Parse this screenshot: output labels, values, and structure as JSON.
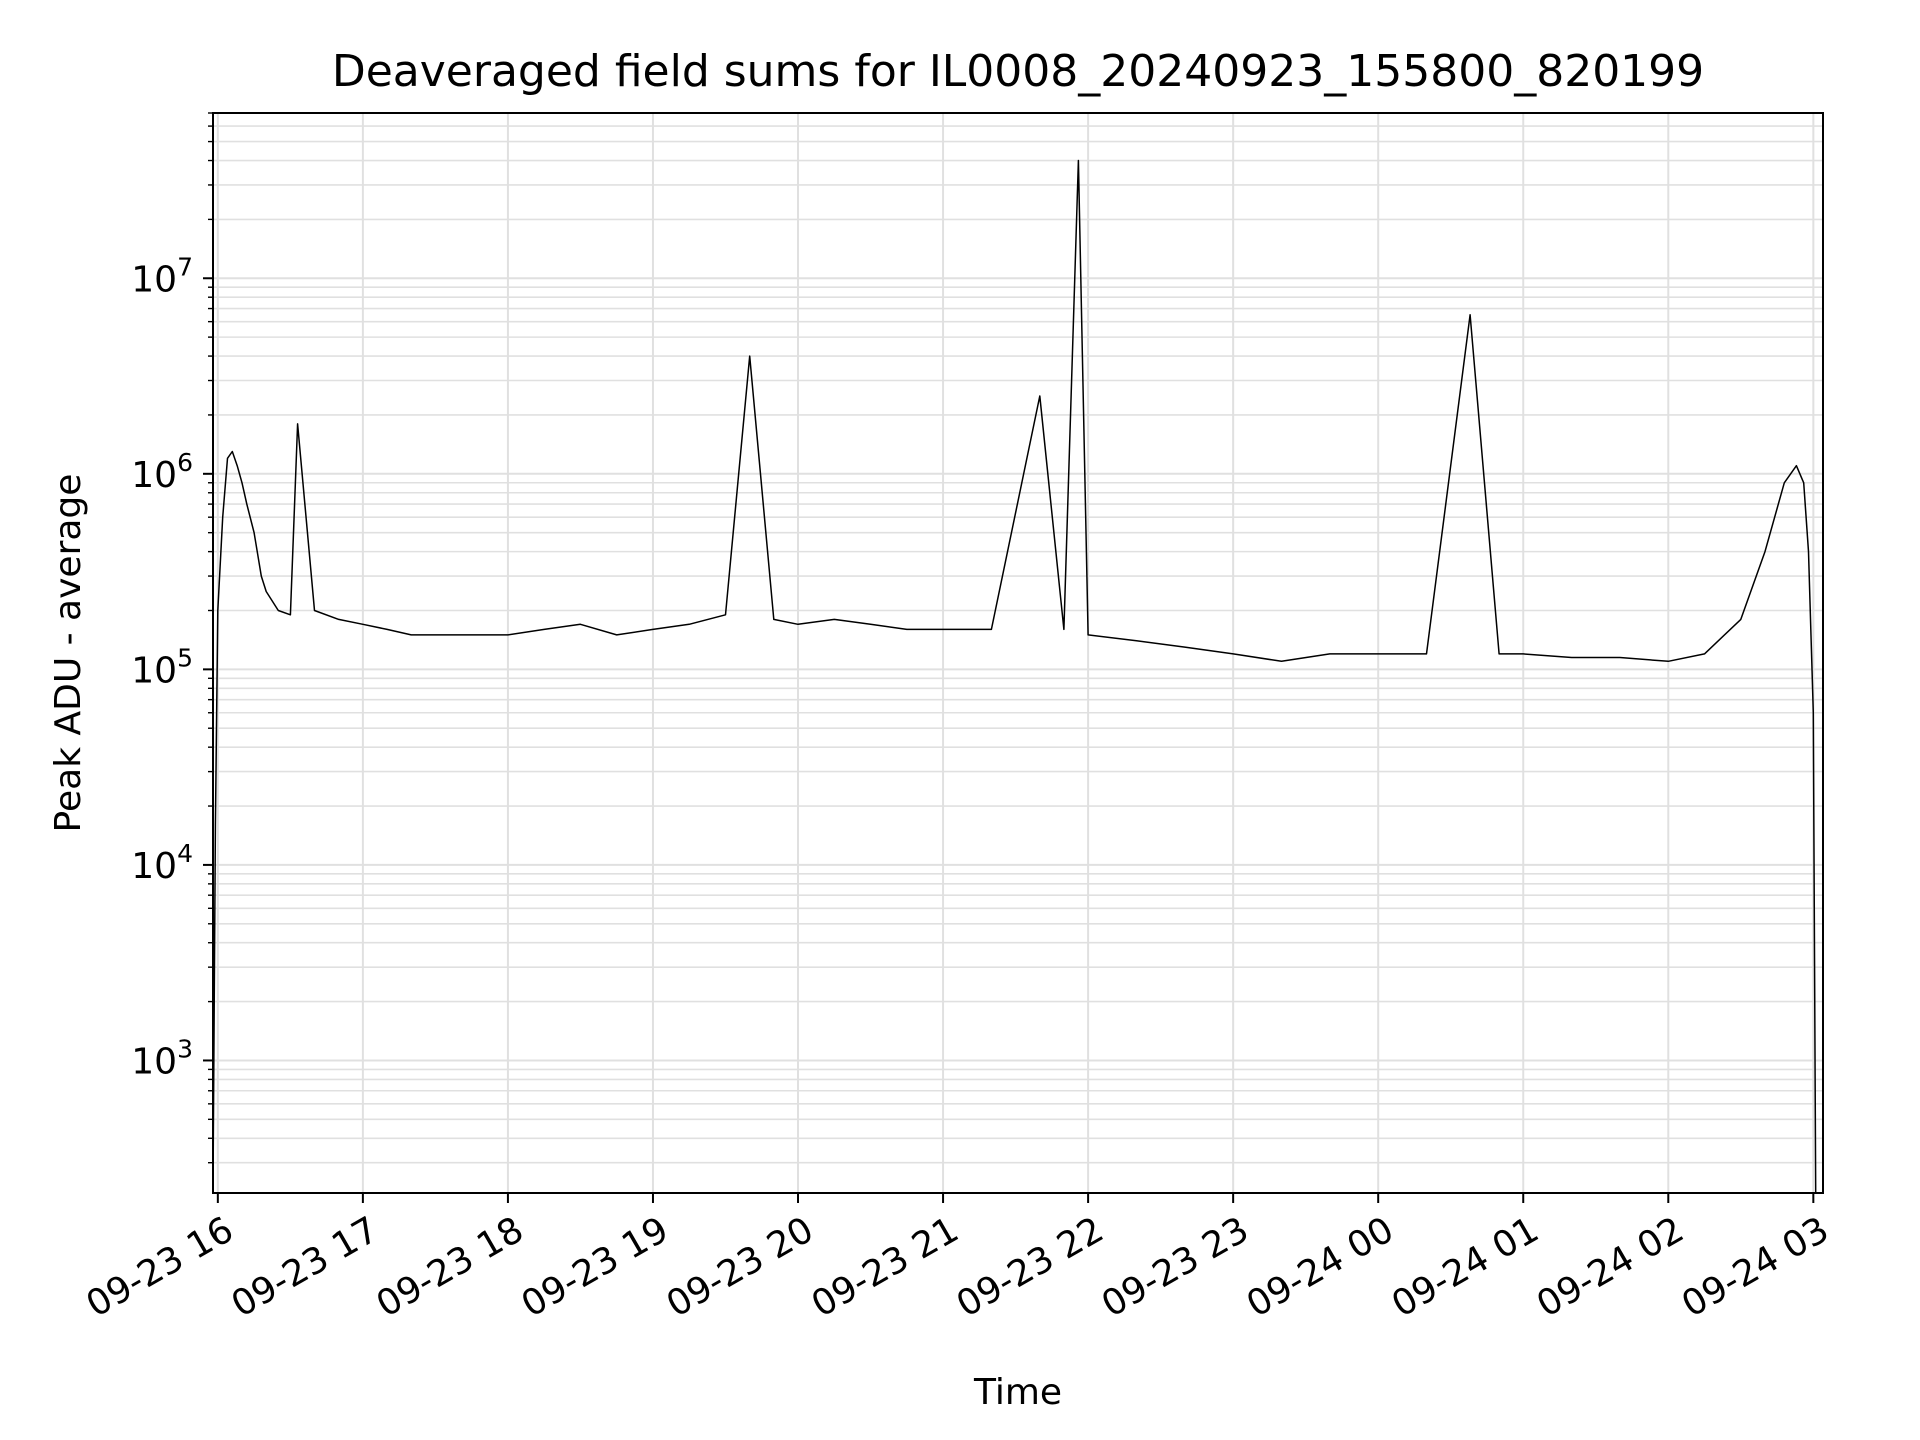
{
  "chart_data": {
    "type": "line",
    "title": "Deaveraged field sums for IL0008_20240923_155800_820199",
    "xlabel": "Time",
    "ylabel": "Peak ADU - average",
    "yscale": "log",
    "ylim": [
      210,
      70000000
    ],
    "xlim": [
      "2024-09-23 15:58",
      "2024-09-24 03:04"
    ],
    "grid": true,
    "line_color": "#000000",
    "grid_color": "#e0e0e0",
    "x_ticks": [
      {
        "t": "2024-09-23 16:00",
        "label": "09-23 16"
      },
      {
        "t": "2024-09-23 17:00",
        "label": "09-23 17"
      },
      {
        "t": "2024-09-23 18:00",
        "label": "09-23 18"
      },
      {
        "t": "2024-09-23 19:00",
        "label": "09-23 19"
      },
      {
        "t": "2024-09-23 20:00",
        "label": "09-23 20"
      },
      {
        "t": "2024-09-23 21:00",
        "label": "09-23 21"
      },
      {
        "t": "2024-09-23 22:00",
        "label": "09-23 22"
      },
      {
        "t": "2024-09-23 23:00",
        "label": "09-23 23"
      },
      {
        "t": "2024-09-24 00:00",
        "label": "09-24 00"
      },
      {
        "t": "2024-09-24 01:00",
        "label": "09-24 01"
      },
      {
        "t": "2024-09-24 02:00",
        "label": "09-24 02"
      },
      {
        "t": "2024-09-24 03:00",
        "label": "09-24 03"
      }
    ],
    "y_ticks": [
      {
        "value": 1000,
        "base": "10",
        "exp": "3"
      },
      {
        "value": 10000,
        "base": "10",
        "exp": "4"
      },
      {
        "value": 100000,
        "base": "10",
        "exp": "5"
      },
      {
        "value": 1000000,
        "base": "10",
        "exp": "6"
      },
      {
        "value": 10000000,
        "base": "10",
        "exp": "7"
      }
    ],
    "series": [
      {
        "points": [
          [
            "2024-09-23 15:58",
            220
          ],
          [
            "2024-09-23 15:59",
            16000
          ],
          [
            "2024-09-23 16:00",
            200000
          ],
          [
            "2024-09-23 16:02",
            600000
          ],
          [
            "2024-09-23 16:04",
            1200000
          ],
          [
            "2024-09-23 16:06",
            1300000
          ],
          [
            "2024-09-23 16:08",
            1100000
          ],
          [
            "2024-09-23 16:10",
            900000
          ],
          [
            "2024-09-23 16:12",
            700000
          ],
          [
            "2024-09-23 16:15",
            500000
          ],
          [
            "2024-09-23 16:18",
            300000
          ],
          [
            "2024-09-23 16:20",
            250000
          ],
          [
            "2024-09-23 16:25",
            200000
          ],
          [
            "2024-09-23 16:30",
            190000
          ],
          [
            "2024-09-23 16:33",
            1800000
          ],
          [
            "2024-09-23 16:40",
            200000
          ],
          [
            "2024-09-23 16:50",
            180000
          ],
          [
            "2024-09-23 17:00",
            170000
          ],
          [
            "2024-09-23 17:10",
            160000
          ],
          [
            "2024-09-23 17:20",
            150000
          ],
          [
            "2024-09-23 17:30",
            150000
          ],
          [
            "2024-09-23 17:40",
            150000
          ],
          [
            "2024-09-23 17:50",
            150000
          ],
          [
            "2024-09-23 18:00",
            150000
          ],
          [
            "2024-09-23 18:15",
            160000
          ],
          [
            "2024-09-23 18:30",
            170000
          ],
          [
            "2024-09-23 18:45",
            150000
          ],
          [
            "2024-09-23 19:00",
            160000
          ],
          [
            "2024-09-23 19:15",
            170000
          ],
          [
            "2024-09-23 19:30",
            190000
          ],
          [
            "2024-09-23 19:40",
            4000000
          ],
          [
            "2024-09-23 19:50",
            180000
          ],
          [
            "2024-09-23 20:00",
            170000
          ],
          [
            "2024-09-23 20:15",
            180000
          ],
          [
            "2024-09-23 20:30",
            170000
          ],
          [
            "2024-09-23 20:45",
            160000
          ],
          [
            "2024-09-23 21:00",
            160000
          ],
          [
            "2024-09-23 21:20",
            160000
          ],
          [
            "2024-09-23 21:40",
            2500000
          ],
          [
            "2024-09-23 21:50",
            160000
          ],
          [
            "2024-09-23 21:56",
            40000000
          ],
          [
            "2024-09-23 22:00",
            150000
          ],
          [
            "2024-09-23 22:20",
            140000
          ],
          [
            "2024-09-23 22:40",
            130000
          ],
          [
            "2024-09-23 23:00",
            120000
          ],
          [
            "2024-09-23 23:20",
            110000
          ],
          [
            "2024-09-23 23:40",
            120000
          ],
          [
            "2024-09-24 00:00",
            120000
          ],
          [
            "2024-09-24 00:20",
            120000
          ],
          [
            "2024-09-24 00:38",
            6500000
          ],
          [
            "2024-09-24 00:50",
            120000
          ],
          [
            "2024-09-24 01:00",
            120000
          ],
          [
            "2024-09-24 01:20",
            115000
          ],
          [
            "2024-09-24 01:40",
            115000
          ],
          [
            "2024-09-24 02:00",
            110000
          ],
          [
            "2024-09-24 02:15",
            120000
          ],
          [
            "2024-09-24 02:30",
            180000
          ],
          [
            "2024-09-24 02:40",
            400000
          ],
          [
            "2024-09-24 02:48",
            900000
          ],
          [
            "2024-09-24 02:53",
            1100000
          ],
          [
            "2024-09-24 02:56",
            900000
          ],
          [
            "2024-09-24 02:58",
            400000
          ],
          [
            "2024-09-24 03:00",
            60000
          ],
          [
            "2024-09-24 03:01",
            210
          ]
        ]
      }
    ]
  }
}
